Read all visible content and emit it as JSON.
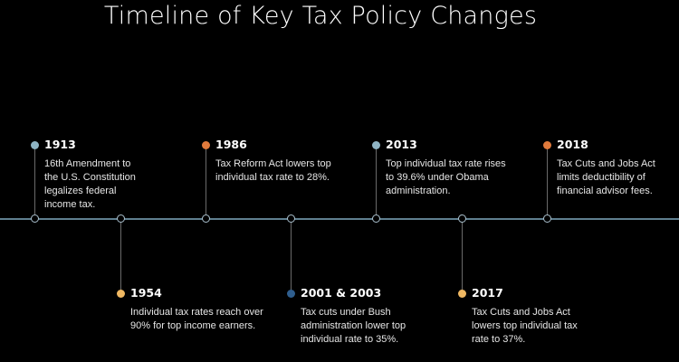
{
  "title": "Timeline of Key Tax Policy Changes",
  "colors": {
    "background": "#000000",
    "axis": "#5f7f8f",
    "dot_blue_light": "#8fb4c4",
    "dot_orange": "#e07a3c",
    "dot_yellow": "#f0b862",
    "dot_navy": "#2f5e8e"
  },
  "events": [
    {
      "year": "1913",
      "description": "16th Amendment to the U.S. Constitution legalizes federal income tax.",
      "position": "above",
      "dot_color": "#8fb4c4"
    },
    {
      "year": "1954",
      "description": "Individual tax rates reach over 90% for top income earners.",
      "position": "below",
      "dot_color": "#f0b862"
    },
    {
      "year": "1986",
      "description": "Tax Reform Act lowers top individual tax rate to 28%.",
      "position": "above",
      "dot_color": "#e07a3c"
    },
    {
      "year": "2001 & 2003",
      "description": "Tax cuts under Bush administration lower top individual rate to 35%.",
      "position": "below",
      "dot_color": "#2f5e8e"
    },
    {
      "year": "2013",
      "description": "Top individual tax rate rises to 39.6% under Obama administration.",
      "position": "above",
      "dot_color": "#8fb4c4"
    },
    {
      "year": "2017",
      "description": "Tax Cuts and Jobs Act lowers top individual tax rate to 37%.",
      "position": "below",
      "dot_color": "#f0b862"
    },
    {
      "year": "2018",
      "description": "Tax Cuts and Jobs Act limits deductibility of financial advisor fees.",
      "position": "above",
      "dot_color": "#e07a3c"
    }
  ]
}
